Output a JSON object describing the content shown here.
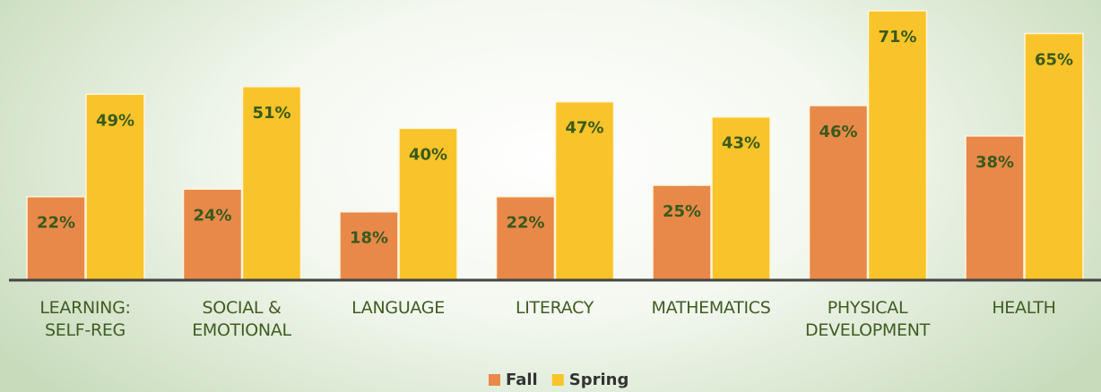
{
  "chart_data": {
    "type": "bar",
    "categories": [
      "LEARNING:\nSELF-REG",
      "SOCIAL &\nEMOTIONAL",
      "LANGUAGE",
      "LITERACY",
      "MATHEMATICS",
      "PHYSICAL\nDEVELOPMENT",
      "HEALTH"
    ],
    "series": [
      {
        "name": "Fall",
        "color": "#e8894a",
        "values": [
          22,
          24,
          18,
          22,
          25,
          46,
          38
        ],
        "value_labels": [
          "22%",
          "24%",
          "18%",
          "22%",
          "25%",
          "46%",
          "38%"
        ]
      },
      {
        "name": "Spring",
        "color": "#f9c42a",
        "values": [
          49,
          51,
          40,
          47,
          43,
          71,
          65
        ],
        "value_labels": [
          "49%",
          "51%",
          "40%",
          "47%",
          "43%",
          "71%",
          "65%"
        ]
      }
    ],
    "legend": "bottom"
  }
}
